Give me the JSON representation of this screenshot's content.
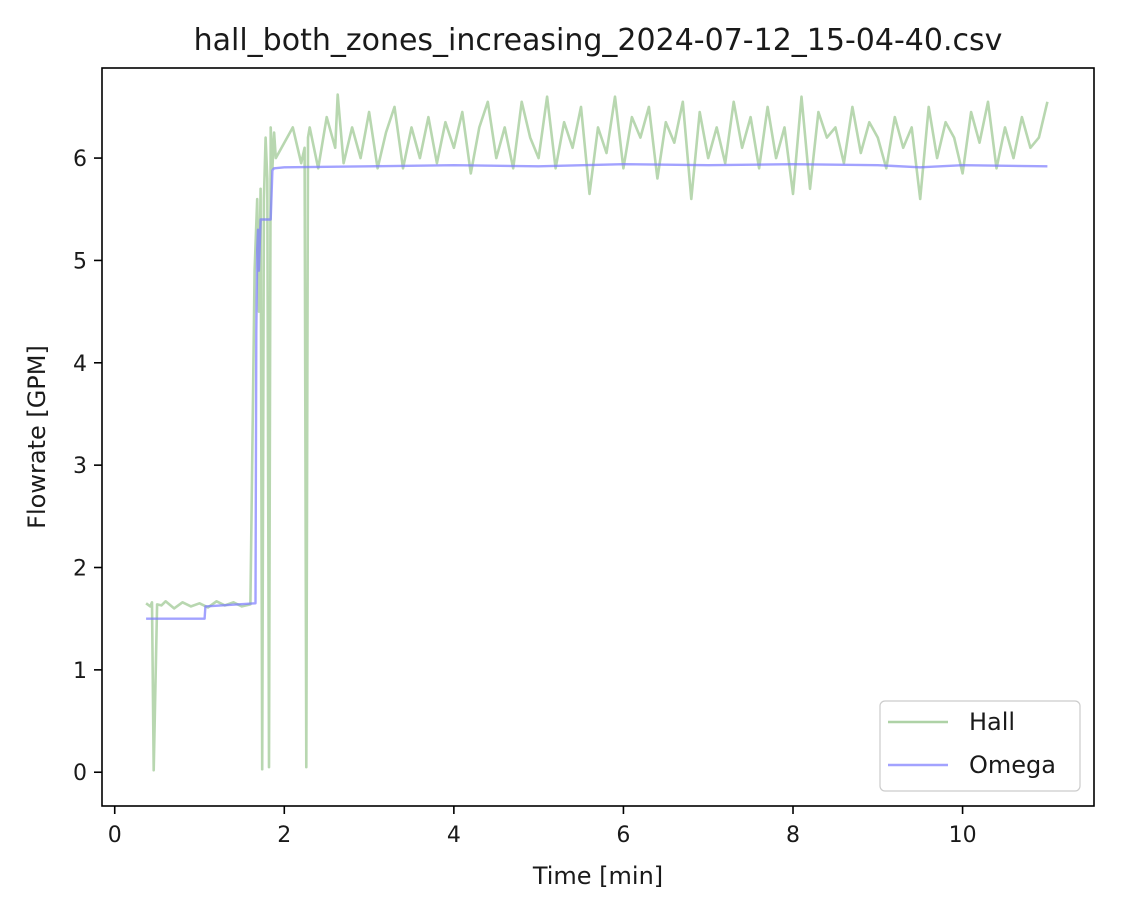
{
  "chart_data": {
    "type": "line",
    "title": "hall_both_zones_increasing_2024-07-12_15-04-40.csv",
    "xlabel": "Time [min]",
    "ylabel": "Flowrate [GPM]",
    "xlim": [
      -0.15,
      11.55
    ],
    "ylim": [
      -0.33,
      6.88
    ],
    "xticks": [
      0,
      2,
      4,
      6,
      8,
      10
    ],
    "yticks": [
      0,
      1,
      2,
      3,
      4,
      5,
      6
    ],
    "grid": false,
    "legend_position": "lower right",
    "series": [
      {
        "name": "Hall",
        "color": "#8cbf80",
        "x": [
          0.37,
          0.42,
          0.44,
          0.46,
          0.5,
          0.55,
          0.6,
          0.7,
          0.8,
          0.9,
          1.0,
          1.1,
          1.2,
          1.3,
          1.4,
          1.5,
          1.6,
          1.65,
          1.68,
          1.7,
          1.72,
          1.74,
          1.76,
          1.78,
          1.8,
          1.82,
          1.84,
          1.86,
          1.88,
          1.9,
          2.0,
          2.1,
          2.2,
          2.24,
          2.26,
          2.28,
          2.3,
          2.4,
          2.5,
          2.6,
          2.63,
          2.7,
          2.8,
          2.9,
          3.0,
          3.1,
          3.2,
          3.3,
          3.4,
          3.5,
          3.6,
          3.7,
          3.8,
          3.9,
          4.0,
          4.1,
          4.2,
          4.3,
          4.4,
          4.5,
          4.6,
          4.7,
          4.8,
          4.9,
          5.0,
          5.1,
          5.2,
          5.3,
          5.4,
          5.5,
          5.6,
          5.7,
          5.8,
          5.9,
          6.0,
          6.1,
          6.2,
          6.3,
          6.4,
          6.5,
          6.6,
          6.7,
          6.8,
          6.9,
          7.0,
          7.1,
          7.2,
          7.3,
          7.4,
          7.5,
          7.6,
          7.7,
          7.8,
          7.9,
          8.0,
          8.1,
          8.2,
          8.3,
          8.4,
          8.5,
          8.6,
          8.7,
          8.8,
          8.9,
          9.0,
          9.1,
          9.2,
          9.3,
          9.4,
          9.5,
          9.6,
          9.7,
          9.8,
          9.9,
          10.0,
          10.1,
          10.2,
          10.3,
          10.4,
          10.5,
          10.6,
          10.7,
          10.8,
          10.9,
          11.0
        ],
        "values": [
          1.65,
          1.62,
          1.66,
          0.02,
          1.64,
          1.63,
          1.67,
          1.6,
          1.66,
          1.62,
          1.65,
          1.61,
          1.67,
          1.63,
          1.66,
          1.62,
          1.64,
          4.9,
          5.6,
          4.5,
          5.7,
          0.03,
          5.6,
          6.2,
          5.8,
          0.05,
          6.3,
          5.9,
          6.25,
          6.0,
          6.15,
          6.3,
          5.95,
          6.1,
          0.05,
          6.2,
          6.3,
          5.9,
          6.4,
          6.1,
          6.62,
          5.95,
          6.3,
          6.0,
          6.45,
          5.9,
          6.25,
          6.5,
          5.9,
          6.3,
          6.0,
          6.4,
          5.95,
          6.35,
          6.1,
          6.45,
          5.85,
          6.3,
          6.55,
          6.0,
          6.3,
          5.9,
          6.55,
          6.2,
          6.0,
          6.6,
          5.9,
          6.35,
          6.1,
          6.5,
          5.65,
          6.3,
          6.05,
          6.6,
          5.9,
          6.4,
          6.2,
          6.5,
          5.8,
          6.35,
          6.15,
          6.55,
          5.6,
          6.45,
          6.0,
          6.3,
          5.95,
          6.55,
          6.1,
          6.4,
          5.9,
          6.5,
          6.0,
          6.3,
          5.65,
          6.6,
          5.7,
          6.45,
          6.2,
          6.3,
          5.95,
          6.5,
          6.05,
          6.35,
          6.2,
          5.9,
          6.4,
          6.1,
          6.3,
          5.6,
          6.5,
          6.0,
          6.35,
          6.2,
          5.85,
          6.45,
          6.15,
          6.55,
          5.9,
          6.3,
          6.0,
          6.4,
          6.1,
          6.2,
          6.55
        ]
      },
      {
        "name": "Omega",
        "color": "#7b7bff",
        "x": [
          0.37,
          1.06,
          1.07,
          1.66,
          1.67,
          1.68,
          1.69,
          1.7,
          1.72,
          1.84,
          1.86,
          1.88,
          2.0,
          3.0,
          4.0,
          5.0,
          6.0,
          7.0,
          8.0,
          9.0,
          9.5,
          10.0,
          11.0
        ],
        "values": [
          1.5,
          1.5,
          1.62,
          1.65,
          4.3,
          5.1,
          5.3,
          4.9,
          5.4,
          5.4,
          5.88,
          5.9,
          5.91,
          5.92,
          5.93,
          5.92,
          5.94,
          5.93,
          5.94,
          5.93,
          5.91,
          5.93,
          5.92
        ]
      }
    ]
  }
}
